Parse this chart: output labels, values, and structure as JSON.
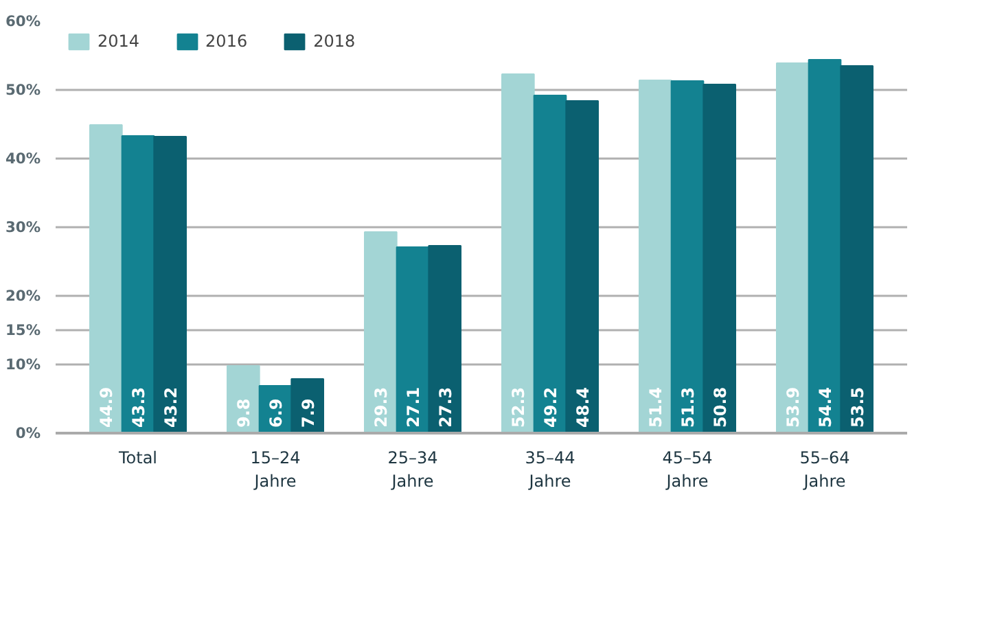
{
  "chart_data": {
    "type": "bar",
    "categories": [
      "Total",
      "15–24\nJahre",
      "25–34\nJahre",
      "35–44\nJahre",
      "45–54\nJahre",
      "55–64\nJahre"
    ],
    "series": [
      {
        "name": "2014",
        "color": "#a3d5d5",
        "values": [
          44.9,
          9.8,
          29.3,
          52.3,
          51.4,
          53.9
        ]
      },
      {
        "name": "2016",
        "color": "#138291",
        "values": [
          43.3,
          6.9,
          27.1,
          49.2,
          51.3,
          54.4
        ]
      },
      {
        "name": "2018",
        "color": "#0b6070",
        "values": [
          43.2,
          7.9,
          27.3,
          48.4,
          50.8,
          53.5
        ]
      }
    ],
    "ylim": [
      0,
      60
    ],
    "yticks": [
      {
        "value": 0,
        "label": "0%"
      },
      {
        "value": 10,
        "label": "10%"
      },
      {
        "value": 15,
        "label": "15%"
      },
      {
        "value": 20,
        "label": "20%"
      },
      {
        "value": 30,
        "label": "30%"
      },
      {
        "value": 40,
        "label": "40%"
      },
      {
        "value": 50,
        "label": "50%"
      },
      {
        "value": 60,
        "label": "60%"
      }
    ],
    "data_labels": true,
    "grid": "y",
    "legend": "top left"
  }
}
